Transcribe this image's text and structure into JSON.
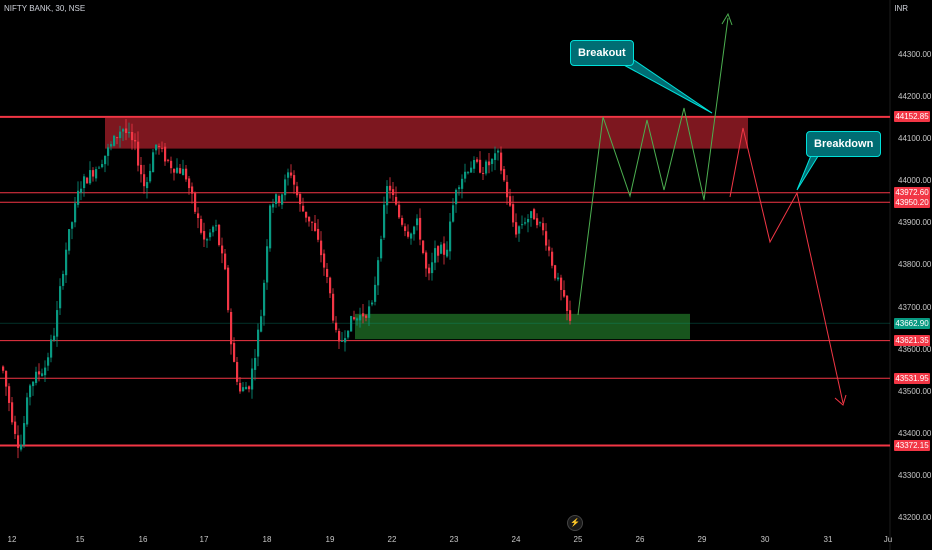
{
  "header": {
    "symbol_title": "NIFTY BANK, 30, NSE",
    "currency": "INR"
  },
  "annotations": {
    "breakout": "Breakout",
    "breakdown": "Breakdown"
  },
  "price_levels": [
    {
      "label": "44152.85",
      "value": 44152.85,
      "color": "#f23645"
    },
    {
      "label": "43972.60",
      "value": 43972.6,
      "color": "#f23645"
    },
    {
      "label": "43950.20",
      "value": 43950.2,
      "color": "#f23645"
    },
    {
      "label": "43662.90",
      "value": 43662.9,
      "color": "#089981"
    },
    {
      "label": "43621.35",
      "value": 43621.35,
      "color": "#f23645"
    },
    {
      "label": "43531.95",
      "value": 43531.95,
      "color": "#f23645"
    },
    {
      "label": "43372.15",
      "value": 43372.15,
      "color": "#f23645"
    }
  ],
  "y_axis": {
    "ticks": [
      "44300.00",
      "44200.00",
      "44100.00",
      "44000.00",
      "43900.00",
      "43800.00",
      "43700.00",
      "43600.00",
      "43500.00",
      "43400.00",
      "43300.00",
      "43200.00"
    ],
    "range": [
      43185,
      44445
    ]
  },
  "x_axis": {
    "ticks": [
      "12",
      "15",
      "16",
      "17",
      "18",
      "19",
      "22",
      "23",
      "24",
      "25",
      "26",
      "29",
      "30",
      "31",
      "Ju"
    ]
  },
  "colors": {
    "bull": "#089981",
    "bear": "#f23645",
    "callout_bg": "#006d73",
    "callout_border": "#00e0d9",
    "resistance_zone": "#8b1a22",
    "support_zone": "#1b5e20"
  },
  "icons": {
    "logo": "tradingview-logo-icon"
  }
}
